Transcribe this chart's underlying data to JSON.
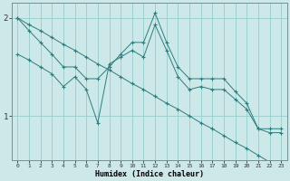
{
  "xlabel": "Humidex (Indice chaleur)",
  "bg_color": "#cce8e8",
  "grid_color": "#99cccc",
  "line_color": "#2e7d7d",
  "x": [
    0,
    1,
    2,
    3,
    4,
    5,
    6,
    7,
    8,
    9,
    10,
    11,
    12,
    13,
    14,
    15,
    16,
    17,
    18,
    19,
    20,
    21,
    22,
    23
  ],
  "line1": [
    2.0,
    1.87,
    1.75,
    1.63,
    1.5,
    1.5,
    1.38,
    1.38,
    1.5,
    1.63,
    1.75,
    1.75,
    2.05,
    1.75,
    1.5,
    1.38,
    1.38,
    1.38,
    1.38,
    1.25,
    1.13,
    0.87,
    0.87,
    0.87
  ],
  "line2": [
    2.0,
    1.93,
    1.87,
    1.8,
    1.73,
    1.67,
    1.6,
    1.53,
    1.47,
    1.4,
    1.33,
    1.27,
    1.2,
    1.13,
    1.07,
    1.0,
    0.93,
    0.87,
    0.8,
    0.73,
    0.67,
    0.6,
    0.53,
    0.47
  ],
  "line3": [
    1.63,
    1.57,
    1.5,
    1.43,
    1.3,
    1.4,
    1.27,
    0.93,
    1.53,
    1.6,
    1.67,
    1.6,
    1.93,
    1.67,
    1.4,
    1.27,
    1.3,
    1.27,
    1.27,
    1.17,
    1.07,
    0.87,
    0.83,
    0.83
  ],
  "ylim_bottom": 0.55,
  "ylim_top": 2.15,
  "yticks": [
    1.0,
    2.0
  ],
  "xticks": [
    0,
    1,
    2,
    3,
    4,
    5,
    6,
    7,
    8,
    9,
    10,
    11,
    12,
    13,
    14,
    15,
    16,
    17,
    18,
    19,
    20,
    21,
    22,
    23
  ],
  "figsize": [
    3.2,
    2.0
  ],
  "dpi": 100
}
